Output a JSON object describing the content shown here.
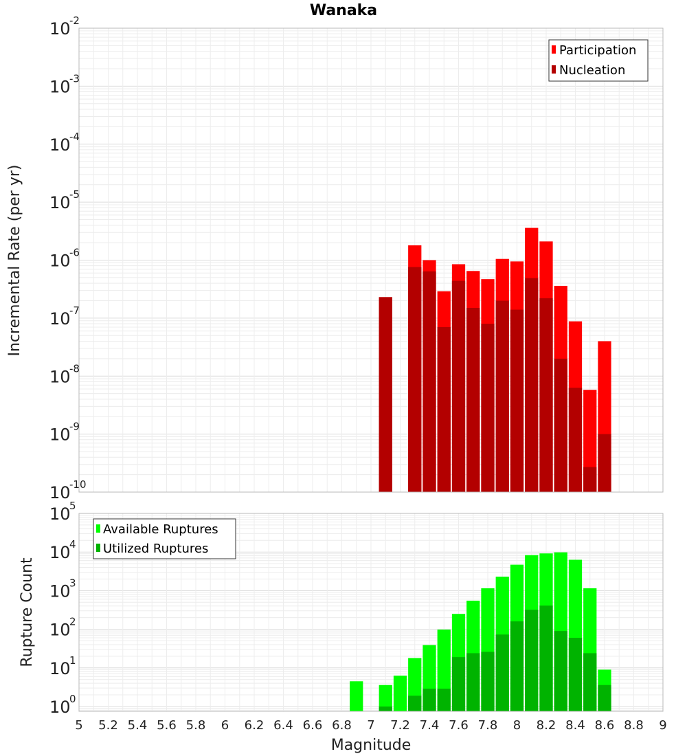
{
  "title": "Wanaka",
  "chart_data": [
    {
      "type": "bar",
      "title": "Wanaka",
      "xlabel": "Magnitude",
      "ylabel": "Incremental Rate (per yr)",
      "yscale": "log",
      "ylim": [
        1e-10,
        0.01
      ],
      "xlim": [
        5,
        9
      ],
      "legend": {
        "placement": "top-right",
        "entries": [
          "Participation",
          "Nucleation"
        ]
      },
      "x": [
        7.1,
        7.3,
        7.4,
        7.5,
        7.6,
        7.7,
        7.8,
        7.9,
        8.0,
        8.1,
        8.2,
        8.3,
        8.4,
        8.5,
        8.6
      ],
      "series": [
        {
          "name": "Participation",
          "color": "#ff0000",
          "values": [
            2.3e-07,
            1.8e-06,
            1e-06,
            2.9e-07,
            8.5e-07,
            6.5e-07,
            4.7e-07,
            1.05e-06,
            9.5e-07,
            3.6e-06,
            2.1e-06,
            3.6e-07,
            8.8e-08,
            5.8e-09,
            4e-08
          ]
        },
        {
          "name": "Nucleation",
          "color": "#b30000",
          "values": [
            2.3e-07,
            7.6e-07,
            6.4e-07,
            7e-08,
            4.4e-07,
            1.5e-07,
            8e-08,
            2e-07,
            1.4e-07,
            4.9e-07,
            2.2e-07,
            2e-08,
            6.3e-09,
            2.7e-10,
            1e-09
          ]
        }
      ],
      "yticks": [
        {
          "base": "10",
          "exp": "-10"
        },
        {
          "base": "10",
          "exp": "-9"
        },
        {
          "base": "10",
          "exp": "-8"
        },
        {
          "base": "10",
          "exp": "-7"
        },
        {
          "base": "10",
          "exp": "-6"
        },
        {
          "base": "10",
          "exp": "-5"
        },
        {
          "base": "10",
          "exp": "-4"
        },
        {
          "base": "10",
          "exp": "-3"
        },
        {
          "base": "10",
          "exp": "-2"
        }
      ]
    },
    {
      "type": "bar",
      "xlabel": "Magnitude",
      "ylabel": "Rupture Count",
      "yscale": "log",
      "ylim": [
        0.75,
        100000.0
      ],
      "xlim": [
        5,
        9
      ],
      "legend": {
        "placement": "top-left",
        "entries": [
          "Available Ruptures",
          "Utilized Ruptures"
        ]
      },
      "x": [
        6.9,
        7.1,
        7.2,
        7.3,
        7.4,
        7.5,
        7.6,
        7.7,
        7.8,
        7.9,
        8.0,
        8.1,
        8.2,
        8.3,
        8.4,
        8.5,
        8.6
      ],
      "series": [
        {
          "name": "Available Ruptures",
          "color": "#00ff00",
          "values": [
            4.5,
            3.6,
            6.3,
            18,
            39,
            98,
            250,
            550,
            1150,
            2300,
            4700,
            8300,
            9200,
            9800,
            6300,
            1150,
            9
          ]
        },
        {
          "name": "Utilized Ruptures",
          "color": "#00b300",
          "values": [
            0,
            1,
            0,
            1.9,
            2.9,
            2.9,
            19,
            24,
            26,
            73,
            160,
            320,
            410,
            90,
            60,
            24,
            3.6
          ]
        }
      ],
      "yticks": [
        {
          "base": "10",
          "exp": "0"
        },
        {
          "base": "10",
          "exp": "1"
        },
        {
          "base": "10",
          "exp": "2"
        },
        {
          "base": "10",
          "exp": "3"
        },
        {
          "base": "10",
          "exp": "4"
        },
        {
          "base": "10",
          "exp": "5"
        }
      ],
      "xticks": [
        "5",
        "5.2",
        "5.4",
        "5.6",
        "5.8",
        "6",
        "6.2",
        "6.4",
        "6.6",
        "6.8",
        "7",
        "7.2",
        "7.4",
        "7.6",
        "7.8",
        "8",
        "8.2",
        "8.4",
        "8.6",
        "8.8",
        "9"
      ]
    }
  ]
}
